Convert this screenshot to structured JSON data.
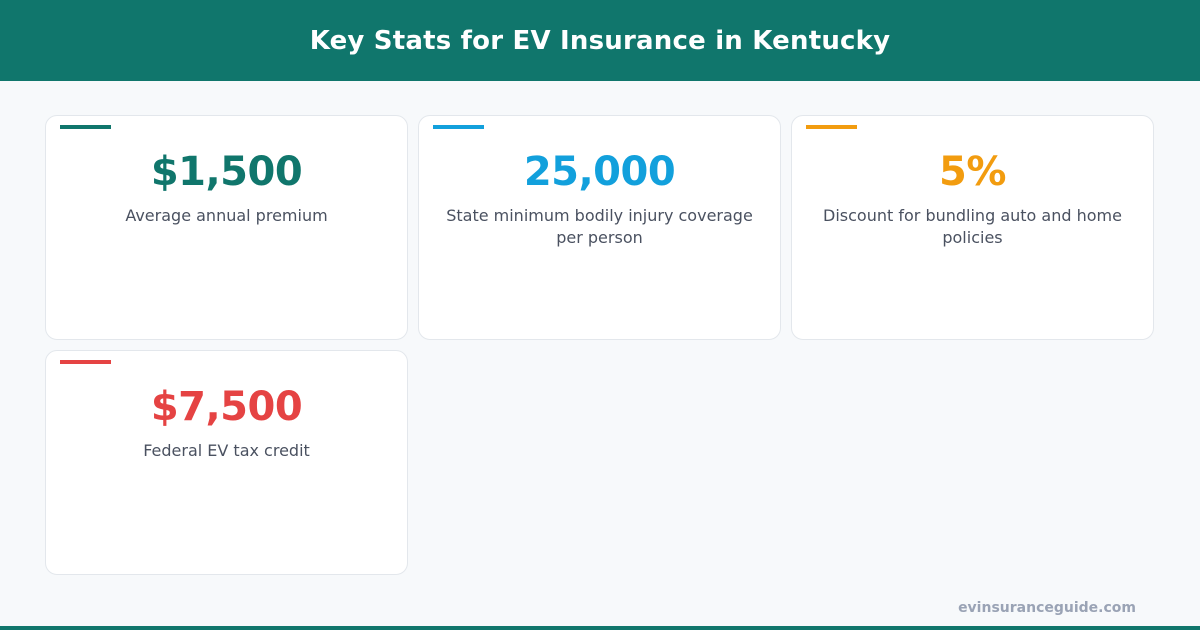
{
  "header": {
    "title": "Key Stats for EV Insurance in Kentucky"
  },
  "stats": [
    {
      "value": "$1,500",
      "label": "Average annual premium",
      "color": "#10766c"
    },
    {
      "value": "25,000",
      "label": "State minimum bodily injury coverage per person",
      "color": "#12a0dc"
    },
    {
      "value": "5%",
      "label": "Discount for bundling auto and home policies",
      "color": "#f29c0f"
    },
    {
      "value": "$7,500",
      "label": "Federal EV tax credit",
      "color": "#e54343"
    }
  ],
  "footer": {
    "site": "evinsuranceguide.com"
  }
}
